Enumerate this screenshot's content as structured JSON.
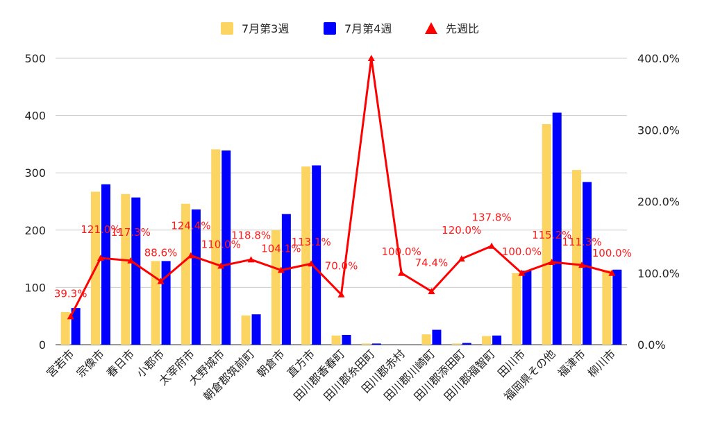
{
  "chart_data": {
    "type": "bar",
    "categories": [
      "宮若市",
      "宗像市",
      "春日市",
      "小郡市",
      "太宰府市",
      "大野城市",
      "朝倉郡筑前町",
      "朝倉市",
      "直方市",
      "田川郡香春町",
      "田川郡糸田町",
      "田川郡赤村",
      "田川郡川崎町",
      "田川郡添田町",
      "田川郡福智町",
      "田川市",
      "福岡県その他",
      "福津市",
      "柳川市"
    ],
    "series": [
      {
        "name": "7月第3週",
        "type": "bar",
        "axis": "left",
        "color": "#fcd462",
        "values": [
          57,
          267,
          263,
          146,
          246,
          341,
          51,
          200,
          311,
          16,
          2,
          0,
          18,
          2,
          15,
          125,
          385,
          305,
          130
        ]
      },
      {
        "name": "7月第4週",
        "type": "bar",
        "axis": "left",
        "color": "#0000ff",
        "values": [
          64,
          280,
          257,
          146,
          236,
          339,
          53,
          228,
          313,
          17,
          2,
          0,
          26,
          3,
          16,
          129,
          405,
          284,
          131
        ]
      },
      {
        "name": "先週比",
        "type": "line",
        "axis": "right",
        "color": "#ff0000",
        "values": [
          39.3,
          121.0,
          117.3,
          88.6,
          124.4,
          110.0,
          118.8,
          104.1,
          113.1,
          70.0,
          400.0,
          100.0,
          74.4,
          120.0,
          137.8,
          100.0,
          115.2,
          111.3,
          100.0
        ],
        "labels": [
          "39.3%",
          "121.0%",
          "117.3%",
          "88.6%",
          "124.4%",
          "110.0%",
          "118.8%",
          "104.1%",
          "113.1%",
          "70.0%",
          "",
          "100.0%",
          "74.4%",
          "120.0%",
          "137.8%",
          "100.0%",
          "115.2%",
          "111.3%",
          "100.0%"
        ]
      }
    ],
    "left_axis": {
      "ticks": [
        "0",
        "100",
        "200",
        "300",
        "400",
        "500"
      ],
      "range": [
        0,
        500
      ]
    },
    "right_axis": {
      "ticks": [
        "0.0%",
        "100.0%",
        "200.0%",
        "300.0%",
        "400.0%"
      ],
      "range": [
        0,
        400
      ]
    },
    "legend_position": "top-center",
    "grid": true
  }
}
